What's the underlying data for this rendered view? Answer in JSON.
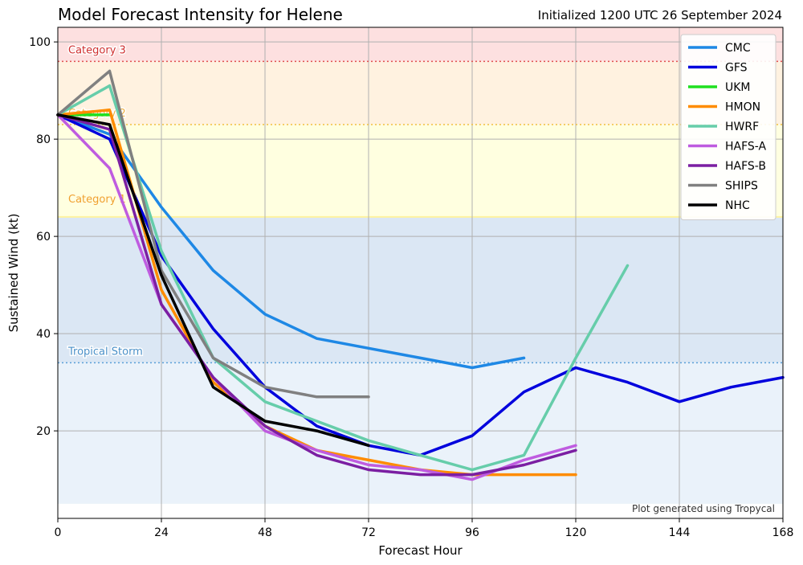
{
  "header": {
    "title": "Model Forecast Intensity for Helene",
    "init": "Initialized 1200 UTC 26 September 2024"
  },
  "credit": "Plot generated using Tropycal",
  "chart_data": {
    "type": "line",
    "title": "Model Forecast Intensity for Helene",
    "subtitle": "Initialized 1200 UTC 26 September 2024",
    "xlabel": "Forecast Hour",
    "ylabel": "Sustained Wind (kt)",
    "xlim": [
      0,
      168
    ],
    "ylim": [
      2,
      103
    ],
    "xticks": [
      0,
      24,
      48,
      72,
      96,
      120,
      144,
      168
    ],
    "yticks": [
      20,
      40,
      60,
      80,
      100
    ],
    "grid": true,
    "legend_position": "top-right",
    "bands": [
      {
        "label": "Tropical Storm",
        "from": 34,
        "to": 64,
        "color": "#dbe7f4"
      },
      {
        "label": "",
        "from": 5,
        "to": 34,
        "color": "#eaf2fa"
      },
      {
        "label": "Category 1",
        "from": 64,
        "to": 83,
        "color": "#ffffe0"
      },
      {
        "label": "Category 2",
        "from": 83,
        "to": 96,
        "color": "#fff2e0"
      },
      {
        "label": "Category 3",
        "from": 96,
        "to": 103,
        "color": "#fde0e0"
      }
    ],
    "thresholds": [
      {
        "value": 34,
        "color": "#5aa0d8",
        "label": "Tropical Storm",
        "label_color": "#4a90c8"
      },
      {
        "value": 83,
        "color": "#f0c040",
        "label": "Category 2",
        "label_color": "#f0b040"
      },
      {
        "value": 96,
        "color": "#e05050",
        "label": "Category 3",
        "label_color": "#d03030"
      }
    ],
    "cat1_label": {
      "text": "Category 1",
      "value": 66,
      "color": "#f0a030"
    },
    "series": [
      {
        "name": "CMC",
        "color": "#1e88e5",
        "x": [
          0,
          12,
          24,
          36,
          48,
          60,
          72,
          84,
          96,
          108
        ],
        "y": [
          85,
          81,
          66,
          53,
          44,
          39,
          37,
          35,
          33,
          35
        ]
      },
      {
        "name": "GFS",
        "color": "#0000dd",
        "x": [
          0,
          12,
          24,
          36,
          48,
          60,
          72,
          84,
          96,
          108,
          120,
          132,
          144,
          156,
          168
        ],
        "y": [
          85,
          80,
          56,
          41,
          29,
          21,
          17,
          15,
          19,
          28,
          33,
          30,
          26,
          29,
          31
        ]
      },
      {
        "name": "UKM",
        "color": "#1fe01f",
        "x": [
          0,
          12
        ],
        "y": [
          85,
          85
        ]
      },
      {
        "name": "HMON",
        "color": "#ff8c00",
        "x": [
          0,
          12,
          24,
          36,
          48,
          60,
          72,
          84,
          96,
          108,
          120
        ],
        "y": [
          85,
          86,
          49,
          30,
          21,
          16,
          14,
          12,
          11,
          11,
          11
        ]
      },
      {
        "name": "HWRF",
        "color": "#66cdaa",
        "x": [
          0,
          12,
          24,
          36,
          48,
          60,
          72,
          84,
          96,
          108,
          120,
          132
        ],
        "y": [
          85,
          91,
          57,
          35,
          26,
          22,
          18,
          15,
          12,
          15,
          35,
          54
        ]
      },
      {
        "name": "HAFS-A",
        "color": "#bf5ce0",
        "x": [
          0,
          12,
          24,
          36,
          48,
          60,
          72,
          84,
          96,
          108,
          120
        ],
        "y": [
          85,
          74,
          46,
          31,
          20,
          16,
          13,
          12,
          10,
          14,
          17
        ]
      },
      {
        "name": "HAFS-B",
        "color": "#7b1fa2",
        "x": [
          0,
          12,
          24,
          36,
          48,
          60,
          72,
          84,
          96,
          108,
          120
        ],
        "y": [
          85,
          82,
          46,
          31,
          21,
          15,
          12,
          11,
          11,
          13,
          16
        ]
      },
      {
        "name": "SHIPS",
        "color": "#808080",
        "x": [
          0,
          12,
          24,
          36,
          48,
          60,
          72
        ],
        "y": [
          85,
          94,
          53,
          35,
          29,
          27,
          27
        ]
      },
      {
        "name": "NHC",
        "color": "#000000",
        "x": [
          0,
          12,
          24,
          36,
          48,
          60,
          72
        ],
        "y": [
          85,
          83,
          52,
          29,
          22,
          20,
          17
        ]
      }
    ]
  }
}
